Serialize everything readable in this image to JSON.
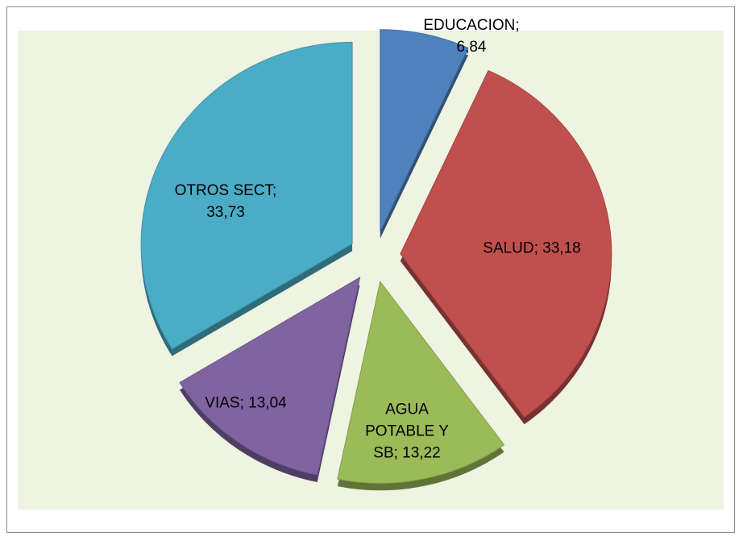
{
  "chart_data": {
    "type": "pie",
    "values": [
      6.84,
      33.18,
      13.22,
      13.04,
      33.73
    ],
    "value_labels": [
      "EDUCACION; 6,84",
      "SALUD; 33,18",
      "AGUA POTABLE Y SB; 13,22",
      "VIAS; 13,04",
      "OTROS SECT; 33,73"
    ],
    "colors": [
      "#4f81bd",
      "#c0504d",
      "#9bbb59",
      "#8064a2",
      "#4bacc6"
    ],
    "exploded": true
  }
}
